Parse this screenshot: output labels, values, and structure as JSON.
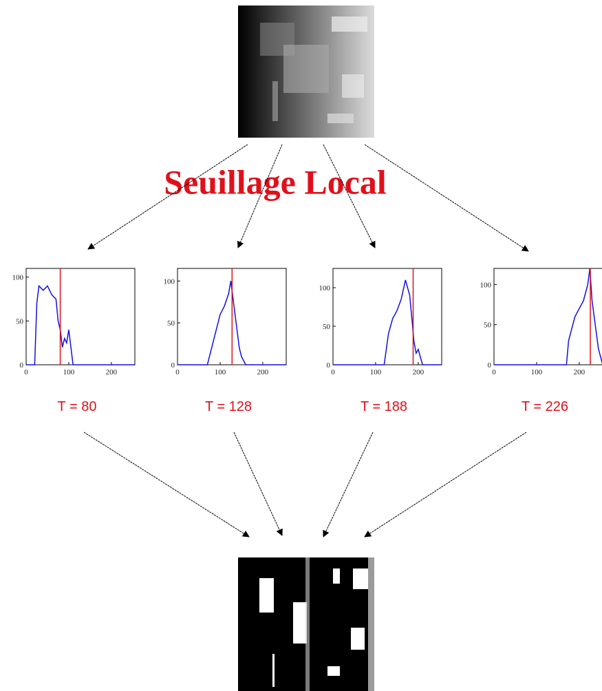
{
  "title": "Seuillage Local",
  "chart_data": [
    {
      "type": "line",
      "x": [
        0,
        20,
        25,
        30,
        40,
        50,
        60,
        70,
        75,
        80,
        85,
        90,
        95,
        100,
        105,
        110,
        255
      ],
      "series": [
        {
          "color": "#1010e0",
          "values": [
            0,
            0,
            70,
            90,
            85,
            90,
            80,
            75,
            50,
            40,
            20,
            30,
            25,
            40,
            20,
            0,
            0
          ]
        }
      ],
      "xlim": [
        0,
        255
      ],
      "ylim": [
        0,
        110
      ],
      "xticks": [
        0,
        100,
        200
      ],
      "yticks": [
        0,
        50,
        100
      ],
      "annotations": [
        {
          "value": 80,
          "label": "T = 80",
          "color": "#e0101a"
        }
      ]
    },
    {
      "type": "line",
      "x": [
        0,
        70,
        80,
        90,
        100,
        110,
        120,
        125,
        130,
        135,
        140,
        145,
        150,
        160,
        255
      ],
      "series": [
        {
          "color": "#1010e0",
          "values": [
            0,
            0,
            20,
            40,
            60,
            70,
            85,
            100,
            80,
            60,
            40,
            20,
            10,
            0,
            0
          ]
        }
      ],
      "xlim": [
        0,
        255
      ],
      "ylim": [
        0,
        115
      ],
      "xticks": [
        0,
        100,
        200
      ],
      "yticks": [
        0,
        50,
        100
      ],
      "annotations": [
        {
          "value": 128,
          "label": "T = 128",
          "color": "#e0101a"
        }
      ]
    },
    {
      "type": "line",
      "x": [
        0,
        120,
        130,
        140,
        150,
        160,
        170,
        175,
        180,
        185,
        190,
        195,
        200,
        210,
        255
      ],
      "series": [
        {
          "color": "#1010e0",
          "values": [
            0,
            0,
            40,
            60,
            70,
            85,
            110,
            100,
            90,
            60,
            30,
            15,
            20,
            0,
            0
          ]
        }
      ],
      "xlim": [
        0,
        255
      ],
      "ylim": [
        0,
        125
      ],
      "xticks": [
        0,
        100,
        200
      ],
      "yticks": [
        0,
        50,
        100
      ],
      "annotations": [
        {
          "value": 188,
          "label": "T = 188",
          "color": "#e0101a"
        }
      ]
    },
    {
      "type": "line",
      "x": [
        0,
        170,
        175,
        180,
        190,
        200,
        210,
        215,
        220,
        225,
        230,
        240,
        245,
        255
      ],
      "series": [
        {
          "color": "#1010e0",
          "values": [
            0,
            0,
            30,
            40,
            60,
            70,
            80,
            90,
            100,
            120,
            80,
            40,
            20,
            0
          ]
        }
      ],
      "xlim": [
        0,
        255
      ],
      "ylim": [
        0,
        120
      ],
      "xticks": [
        0,
        100,
        200
      ],
      "yticks": [
        0,
        50,
        100
      ],
      "annotations": [
        {
          "value": 226,
          "label": "T = 226",
          "color": "#e0101a"
        }
      ]
    }
  ]
}
